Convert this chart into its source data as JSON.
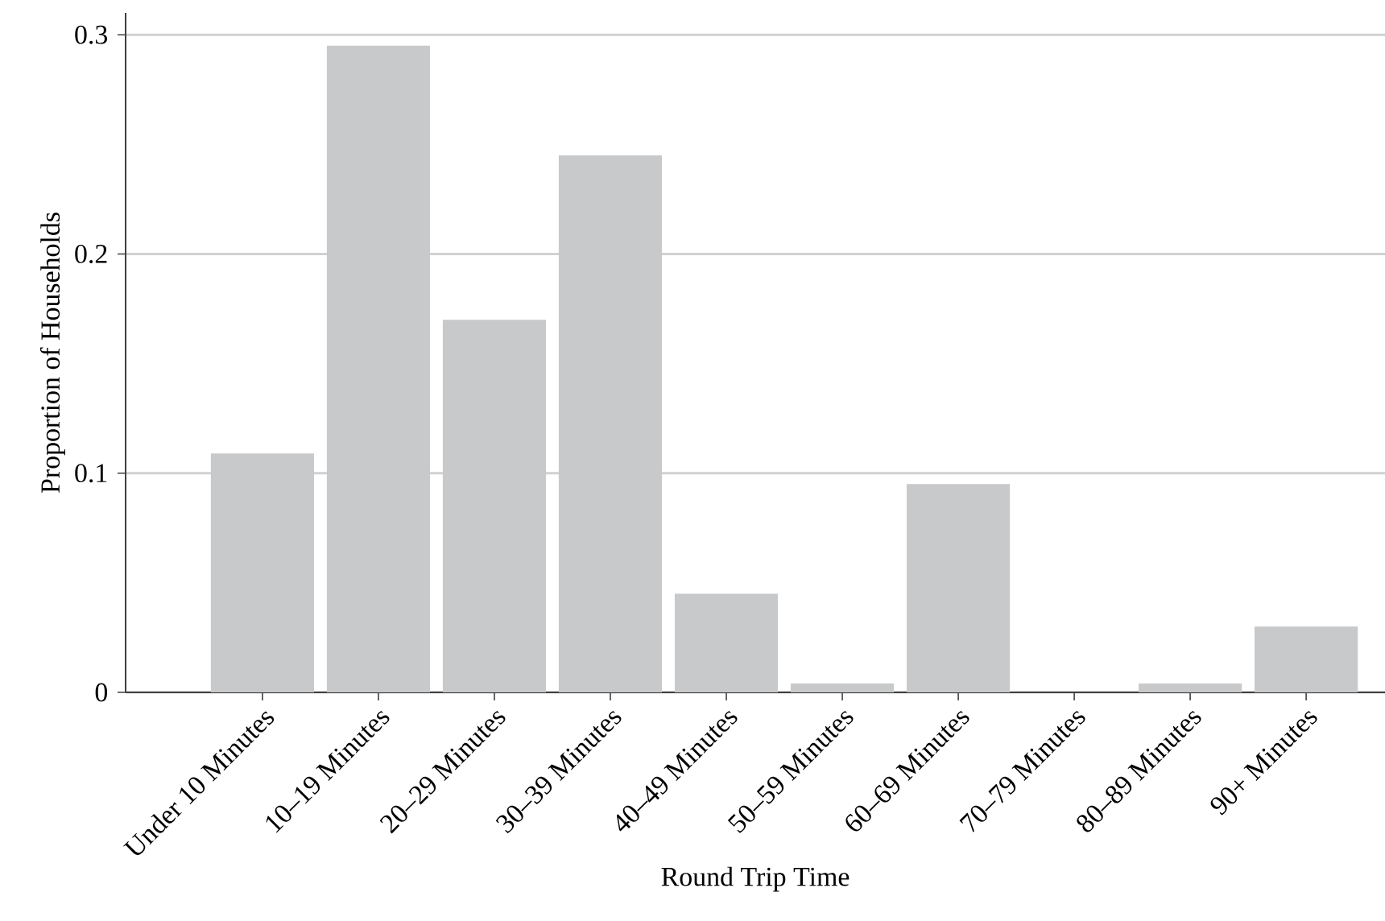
{
  "chart_data": {
    "type": "bar",
    "xlabel": "Round Trip Time",
    "ylabel": "Proportion of Households",
    "categories": [
      "Under 10 Minutes",
      "10–19 Minutes",
      "20–29 Minutes",
      "30–39 Minutes",
      "40–49 Minutes",
      "50–59 Minutes",
      "60–69 Minutes",
      "70–79 Minutes",
      "80–89 Minutes",
      "90+ Minutes"
    ],
    "values": [
      0.109,
      0.295,
      0.17,
      0.245,
      0.045,
      0.004,
      0.095,
      0,
      0.004,
      0.03
    ],
    "color": "#c8c9cb",
    "ylim": [
      0,
      0.31
    ],
    "yticks": [
      0,
      0.1,
      0.2,
      0.3
    ],
    "grid": "y"
  }
}
